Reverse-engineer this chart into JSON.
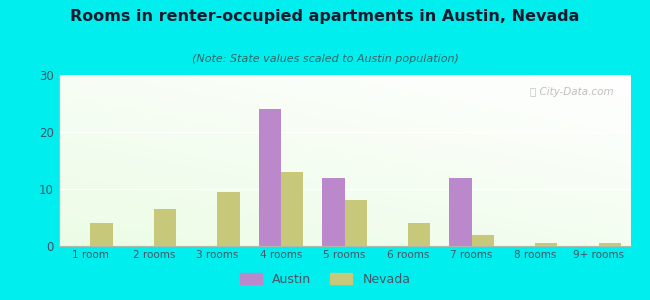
{
  "title": "Rooms in renter-occupied apartments in Austin, Nevada",
  "subtitle": "(Note: State values scaled to Austin population)",
  "categories": [
    "1 room",
    "2 rooms",
    "3 rooms",
    "4 rooms",
    "5 rooms",
    "6 rooms",
    "7 rooms",
    "8 rooms",
    "9+ rooms"
  ],
  "austin_values": [
    0,
    0,
    0,
    24,
    12,
    0,
    12,
    0,
    0
  ],
  "nevada_values": [
    4,
    6.5,
    9.5,
    13,
    8,
    4,
    2,
    0.6,
    0.5
  ],
  "austin_color": "#bb88cc",
  "nevada_color": "#c8c87a",
  "background_outer": "#00eeee",
  "ylim": [
    0,
    30
  ],
  "yticks": [
    0,
    10,
    20,
    30
  ],
  "bar_width": 0.35,
  "watermark": "ⓘ City-Data.com",
  "title_color": "#1a1a2e",
  "subtitle_color": "#336666",
  "tick_color": "#445566"
}
